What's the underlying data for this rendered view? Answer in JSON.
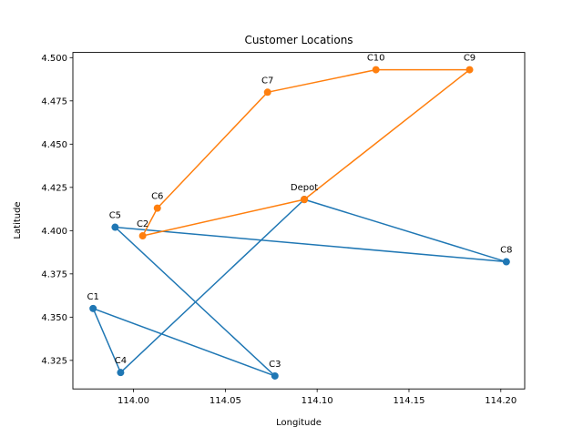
{
  "chart_data": {
    "type": "line",
    "title": "Customer Locations",
    "xlabel": "Longitude",
    "ylabel": "Latitude",
    "xlim": [
      113.967,
      114.213
    ],
    "ylim": [
      4.3085,
      4.503
    ],
    "xticks": [
      {
        "value": 114.0,
        "label": "114.00"
      },
      {
        "value": 114.05,
        "label": "114.05"
      },
      {
        "value": 114.1,
        "label": "114.10"
      },
      {
        "value": 114.15,
        "label": "114.15"
      },
      {
        "value": 114.2,
        "label": "114.20"
      }
    ],
    "yticks": [
      {
        "value": 4.325,
        "label": "4.325"
      },
      {
        "value": 4.35,
        "label": "4.350"
      },
      {
        "value": 4.375,
        "label": "4.375"
      },
      {
        "value": 4.4,
        "label": "4.400"
      },
      {
        "value": 4.425,
        "label": "4.425"
      },
      {
        "value": 4.45,
        "label": "4.450"
      },
      {
        "value": 4.475,
        "label": "4.475"
      },
      {
        "value": 4.5,
        "label": "4.500"
      }
    ],
    "grid": false,
    "series": [
      {
        "color": "#1f77b4",
        "points": [
          {
            "label": "Depot",
            "x": 114.093,
            "y": 4.418
          },
          {
            "label": "C4",
            "x": 113.993,
            "y": 4.318
          },
          {
            "label": "C1",
            "x": 113.978,
            "y": 4.355
          },
          {
            "label": "C3",
            "x": 114.077,
            "y": 4.316
          },
          {
            "label": "C5",
            "x": 113.99,
            "y": 4.402
          },
          {
            "label": "C8",
            "x": 114.203,
            "y": 4.382
          },
          {
            "label": "Depot",
            "x": 114.093,
            "y": 4.418
          }
        ]
      },
      {
        "color": "#ff7f0e",
        "points": [
          {
            "label": "Depot",
            "x": 114.093,
            "y": 4.418
          },
          {
            "label": "C2",
            "x": 114.005,
            "y": 4.397
          },
          {
            "label": "C6",
            "x": 114.013,
            "y": 4.413
          },
          {
            "label": "C7",
            "x": 114.073,
            "y": 4.48
          },
          {
            "label": "C10",
            "x": 114.132,
            "y": 4.493
          },
          {
            "label": "C9",
            "x": 114.183,
            "y": 4.493
          },
          {
            "label": "Depot",
            "x": 114.093,
            "y": 4.418
          }
        ]
      }
    ],
    "annotations": [
      {
        "text": "C1",
        "x": 113.978,
        "y": 4.355
      },
      {
        "text": "C2",
        "x": 114.005,
        "y": 4.397
      },
      {
        "text": "C3",
        "x": 114.077,
        "y": 4.316
      },
      {
        "text": "C4",
        "x": 113.993,
        "y": 4.318
      },
      {
        "text": "C5",
        "x": 113.99,
        "y": 4.402
      },
      {
        "text": "C6",
        "x": 114.013,
        "y": 4.413
      },
      {
        "text": "C7",
        "x": 114.073,
        "y": 4.48
      },
      {
        "text": "C8",
        "x": 114.203,
        "y": 4.382
      },
      {
        "text": "C9",
        "x": 114.183,
        "y": 4.493
      },
      {
        "text": "C10",
        "x": 114.132,
        "y": 4.493
      },
      {
        "text": "Depot",
        "x": 114.093,
        "y": 4.418
      }
    ]
  }
}
